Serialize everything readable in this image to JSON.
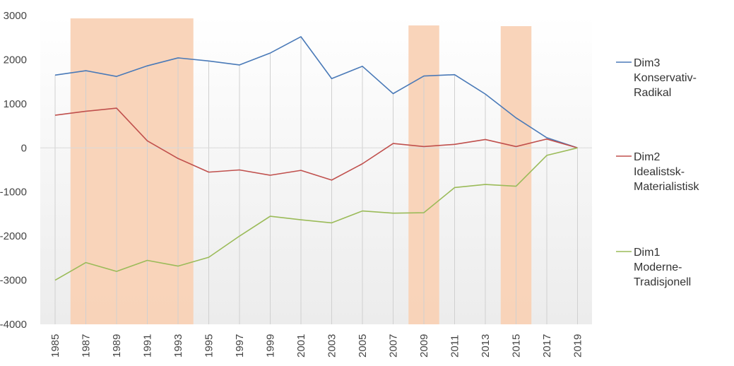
{
  "chart_data": {
    "type": "line",
    "x": [
      "1985",
      "1987",
      "1989",
      "1991",
      "1993",
      "1995",
      "1997",
      "1999",
      "2001",
      "2003",
      "2005",
      "2007",
      "2009",
      "2011",
      "2013",
      "2015",
      "2017",
      "2019"
    ],
    "ylim": [
      -4000,
      3000
    ],
    "yticks": [
      "3000",
      "2000",
      "1000",
      "0",
      "-1000",
      "-2000",
      "-3000",
      "-4000"
    ],
    "ytick_values": [
      3000,
      2000,
      1000,
      0,
      -1000,
      -2000,
      -3000,
      -4000
    ],
    "grid": "vertical",
    "legend_position": "right",
    "highlight_ranges": [
      [
        "1986",
        "1994"
      ],
      [
        "2008",
        "2010"
      ],
      [
        "2014",
        "2016"
      ]
    ],
    "highlight_color": "#f9d2b6",
    "series": [
      {
        "legend": [
          "Dim3",
          "Konservativ-",
          "Radikal"
        ],
        "color": "#4a7ab8",
        "values": [
          1650,
          1750,
          1620,
          1860,
          2040,
          1970,
          1880,
          2150,
          2520,
          1570,
          1850,
          1230,
          1630,
          1660,
          1220,
          680,
          230,
          0
        ]
      },
      {
        "legend": [
          "Dim2",
          "Idealistsk-",
          "Materialistisk"
        ],
        "color": "#c0504d",
        "values": [
          740,
          830,
          900,
          160,
          -240,
          -550,
          -500,
          -620,
          -510,
          -730,
          -360,
          100,
          30,
          80,
          190,
          30,
          200,
          0
        ]
      },
      {
        "legend": [
          "Dim1",
          "Moderne-",
          "Tradisjonell"
        ],
        "color": "#9bbb59",
        "values": [
          -3000,
          -2600,
          -2800,
          -2550,
          -2680,
          -2480,
          -2000,
          -1550,
          -1630,
          -1700,
          -1430,
          -1480,
          -1470,
          -900,
          -830,
          -870,
          -170,
          0
        ]
      }
    ]
  }
}
